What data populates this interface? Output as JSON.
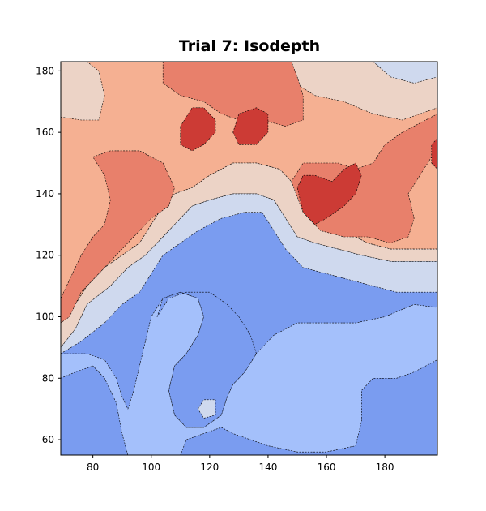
{
  "chart_data": {
    "type": "contour",
    "title": "Trial 7: Isodepth",
    "xlabel": "",
    "ylabel": "",
    "xlim": [
      69,
      198
    ],
    "ylim": [
      55,
      183
    ],
    "xticks": [
      80,
      100,
      120,
      140,
      160,
      180
    ],
    "yticks": [
      60,
      80,
      100,
      120,
      140,
      160,
      180
    ],
    "colormap": "coolwarm",
    "levels": [
      {
        "level": 1,
        "color": "#7a9cf0"
      },
      {
        "level": 2,
        "color": "#a4c0fb"
      },
      {
        "level": 3,
        "color": "#cfd9ee"
      },
      {
        "level": 4,
        "color": "#ecd3c6"
      },
      {
        "level": 5,
        "color": "#f5b092"
      },
      {
        "level": 6,
        "color": "#e8806b"
      },
      {
        "level": 7,
        "color": "#cc3b35"
      }
    ],
    "contour_line_style": "dashed",
    "regions": [
      {
        "level": 1,
        "points": [
          [
            69,
            55
          ],
          [
            198,
            55
          ],
          [
            198,
            183
          ],
          [
            69,
            183
          ]
        ]
      },
      {
        "level": 2,
        "points": [
          [
            69,
            86
          ],
          [
            74,
            84
          ],
          [
            82,
            82
          ],
          [
            86,
            76
          ],
          [
            90,
            66
          ],
          [
            91,
            57
          ],
          [
            95,
            55
          ],
          [
            198,
            55
          ],
          [
            198,
            103
          ],
          [
            190,
            104
          ],
          [
            180,
            100
          ],
          [
            170,
            98
          ],
          [
            160,
            98
          ],
          [
            150,
            98
          ],
          [
            142,
            94
          ],
          [
            136,
            88
          ],
          [
            132,
            82
          ],
          [
            128,
            78
          ],
          [
            126,
            74
          ],
          [
            124,
            66
          ],
          [
            118,
            60
          ],
          [
            112,
            60
          ],
          [
            106,
            64
          ],
          [
            104,
            70
          ],
          [
            104,
            78
          ],
          [
            110,
            84
          ],
          [
            110,
            94
          ],
          [
            114,
            104
          ],
          [
            120,
            108
          ],
          [
            130,
            108
          ],
          [
            134,
            102
          ],
          [
            132,
            94
          ],
          [
            126,
            88
          ],
          [
            120,
            86
          ],
          [
            114,
            88
          ],
          [
            110,
            88
          ]
        ]
      },
      {
        "level": 2,
        "points": [
          [
            69,
            86
          ],
          [
            78,
            82
          ],
          [
            84,
            80
          ],
          [
            84,
            74
          ],
          [
            86,
            68
          ],
          [
            90,
            62
          ],
          [
            94,
            56
          ],
          [
            110,
            55
          ],
          [
            112,
            62
          ],
          [
            108,
            70
          ],
          [
            108,
            80
          ],
          [
            112,
            86
          ],
          [
            120,
            86
          ],
          [
            128,
            88
          ],
          [
            134,
            94
          ],
          [
            136,
            104
          ],
          [
            130,
            110
          ],
          [
            120,
            110
          ],
          [
            110,
            104
          ],
          [
            104,
            96
          ],
          [
            100,
            92
          ],
          [
            98,
            86
          ],
          [
            100,
            80
          ],
          [
            96,
            72
          ],
          [
            92,
            66
          ],
          [
            88,
            70
          ],
          [
            86,
            80
          ],
          [
            80,
            84
          ],
          [
            74,
            86
          ]
        ]
      },
      {
        "level": 3,
        "points": [
          [
            69,
            88
          ],
          [
            76,
            86
          ],
          [
            82,
            86
          ],
          [
            88,
            82
          ],
          [
            92,
            78
          ],
          [
            94,
            72
          ],
          [
            96,
            66
          ],
          [
            92,
            64
          ],
          [
            88,
            70
          ],
          [
            86,
            76
          ],
          [
            80,
            80
          ],
          [
            74,
            82
          ],
          [
            69,
            82
          ]
        ]
      },
      {
        "level": 2,
        "points": [
          [
            69,
            82
          ],
          [
            72,
            78
          ],
          [
            76,
            74
          ],
          [
            80,
            70
          ],
          [
            84,
            66
          ],
          [
            86,
            60
          ],
          [
            88,
            55
          ],
          [
            69,
            55
          ]
        ]
      },
      {
        "level": 1,
        "points": [
          [
            69,
            55
          ],
          [
            86,
            55
          ],
          [
            84,
            60
          ],
          [
            82,
            66
          ],
          [
            80,
            70
          ],
          [
            76,
            74
          ],
          [
            72,
            78
          ],
          [
            69,
            80
          ]
        ]
      }
    ]
  }
}
